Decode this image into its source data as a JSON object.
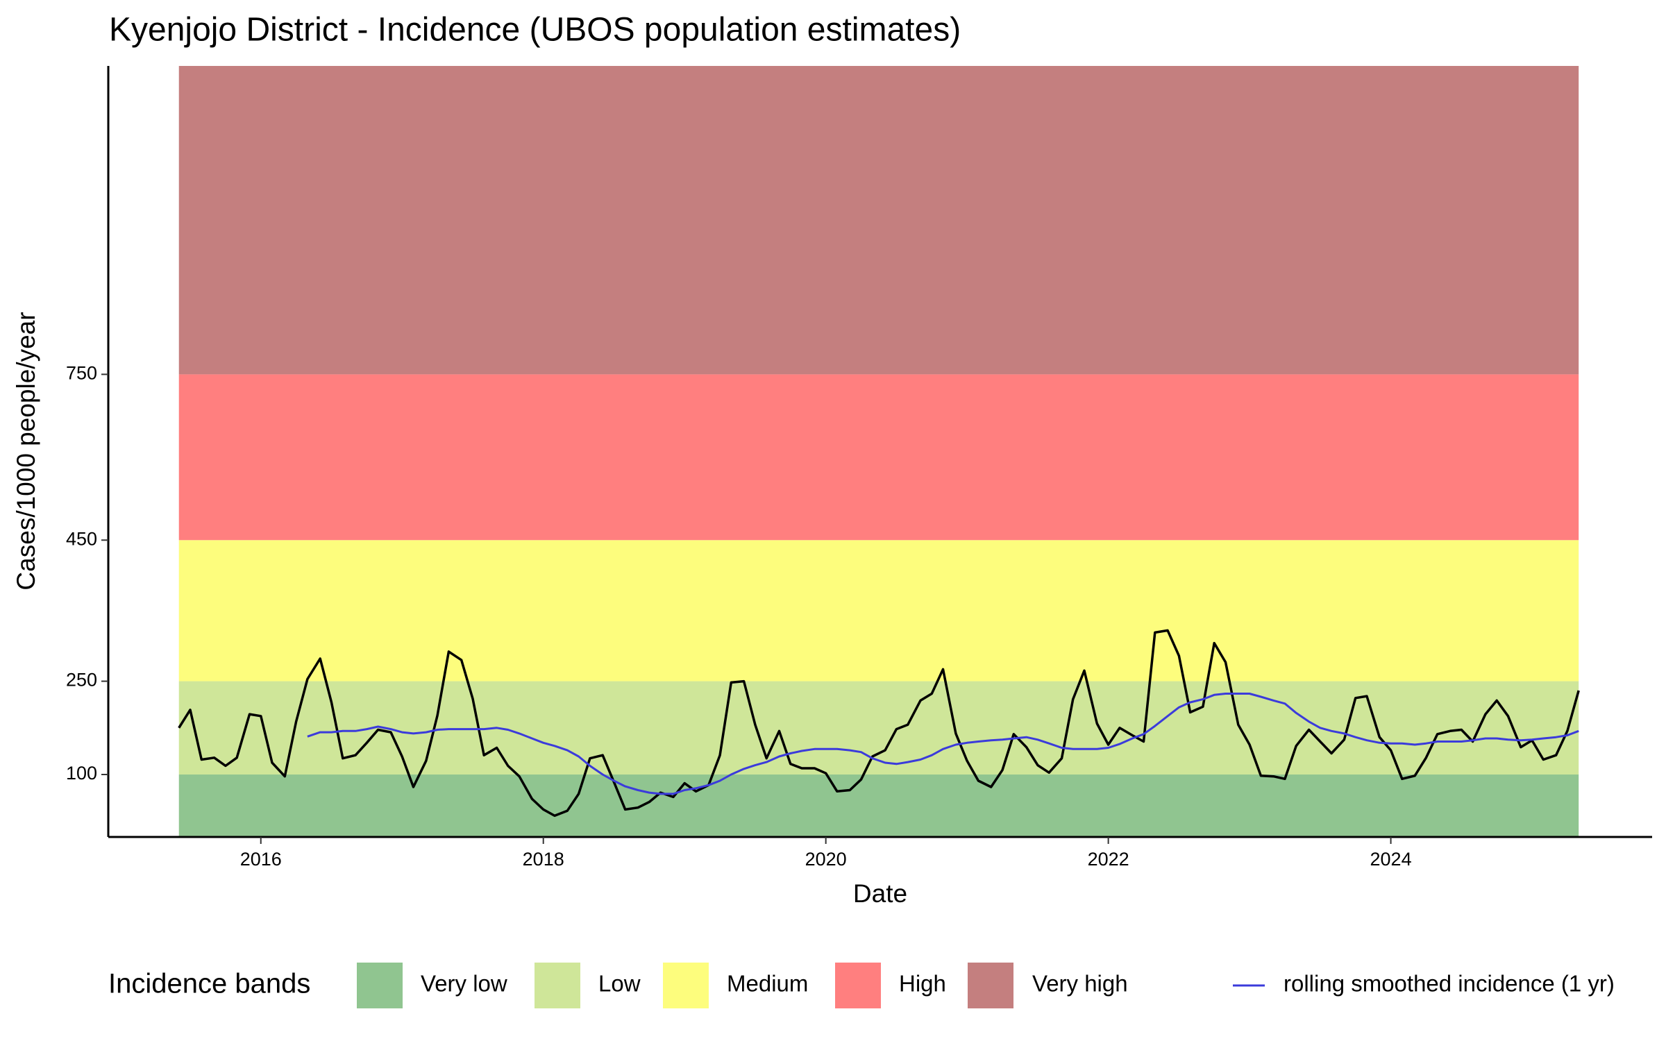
{
  "chart_data": {
    "type": "line",
    "title": "Kyenjojo District - Incidence (UBOS population estimates)",
    "x_label": "Date",
    "y_label": "Cases/1000 people/year",
    "legend_title": "Incidence bands",
    "legend_position": "bottom",
    "xlim": [
      2014.92,
      2025.85
    ],
    "xticks": [
      2016,
      2018,
      2020,
      2022,
      2024
    ],
    "ylim": [
      0,
      1300
    ],
    "yticks": [
      100,
      250,
      450,
      750
    ],
    "bands": [
      {
        "name": "Very low",
        "color": "#90c590",
        "from": 0,
        "to": 100
      },
      {
        "name": "Low",
        "color": "#cfe699",
        "from": 100,
        "to": 250
      },
      {
        "name": "Medium",
        "color": "#fdfd7d",
        "from": 250,
        "to": 450
      },
      {
        "name": "High",
        "color": "#ff7f7f",
        "from": 450,
        "to": 750
      },
      {
        "name": "Very high",
        "color": "#c47f7f",
        "from": 750,
        "to": 1300
      }
    ],
    "x": [
      2015.42,
      2015.5,
      2015.58,
      2015.67,
      2015.75,
      2015.83,
      2015.92,
      2016.0,
      2016.08,
      2016.17,
      2016.25,
      2016.33,
      2016.42,
      2016.5,
      2016.58,
      2016.67,
      2016.75,
      2016.83,
      2016.92,
      2017.0,
      2017.08,
      2017.17,
      2017.25,
      2017.33,
      2017.42,
      2017.5,
      2017.58,
      2017.67,
      2017.75,
      2017.83,
      2017.92,
      2018.0,
      2018.08,
      2018.17,
      2018.25,
      2018.33,
      2018.42,
      2018.5,
      2018.58,
      2018.67,
      2018.75,
      2018.83,
      2018.92,
      2019.0,
      2019.08,
      2019.17,
      2019.25,
      2019.33,
      2019.42,
      2019.5,
      2019.58,
      2019.67,
      2019.75,
      2019.83,
      2019.92,
      2020.0,
      2020.08,
      2020.17,
      2020.25,
      2020.33,
      2020.42,
      2020.5,
      2020.58,
      2020.67,
      2020.75,
      2020.83,
      2020.92,
      2021.0,
      2021.08,
      2021.17,
      2021.25,
      2021.33,
      2021.42,
      2021.5,
      2021.58,
      2021.67,
      2021.75,
      2021.83,
      2021.92,
      2022.0,
      2022.08,
      2022.17,
      2022.25,
      2022.33,
      2022.42,
      2022.5,
      2022.58,
      2022.67,
      2022.75,
      2022.83,
      2022.92,
      2023.0,
      2023.08,
      2023.17,
      2023.25,
      2023.33,
      2023.42,
      2023.5,
      2023.58,
      2023.67,
      2023.75,
      2023.83,
      2023.92,
      2024.0,
      2024.08,
      2024.17,
      2024.25,
      2024.33,
      2024.42,
      2024.5,
      2024.58,
      2024.67,
      2024.75,
      2024.83,
      2024.92,
      2025.0,
      2025.08,
      2025.17,
      2025.25,
      2025.33
    ],
    "series": [
      {
        "color": "#000000",
        "values": [
          175,
          204,
          124,
          127,
          114,
          127,
          197,
          194,
          119,
          97,
          185,
          253,
          282,
          216,
          126,
          131,
          151,
          172,
          168,
          129,
          80,
          122,
          195,
          292,
          280,
          222,
          131,
          143,
          114,
          97,
          61,
          44,
          34,
          42,
          69,
          126,
          131,
          88,
          44,
          47,
          56,
          71,
          64,
          86,
          73,
          83,
          131,
          248,
          250,
          180,
          126,
          170,
          117,
          110,
          110,
          102,
          73,
          75,
          92,
          129,
          139,
          173,
          180,
          219,
          230,
          267,
          166,
          122,
          90,
          80,
          107,
          165,
          144,
          115,
          103,
          126,
          221,
          265,
          182,
          148,
          175,
          163,
          153,
          319,
          322,
          286,
          200,
          209,
          304,
          277,
          180,
          148,
          98,
          97,
          93,
          146,
          172,
          153,
          134,
          156,
          223,
          226,
          160,
          139,
          93,
          98,
          127,
          165,
          170,
          172,
          153,
          197,
          219,
          194,
          144,
          155,
          124,
          131,
          170,
          235
        ]
      },
      {
        "name": "rolling smoothed incidence (1 yr)",
        "color": "#3b3bdb",
        "values": [
          null,
          null,
          null,
          null,
          null,
          null,
          null,
          null,
          null,
          null,
          null,
          161,
          168,
          168,
          170,
          170,
          173,
          177,
          173,
          168,
          166,
          168,
          172,
          173,
          173,
          173,
          173,
          175,
          172,
          166,
          158,
          151,
          146,
          139,
          129,
          114,
          100,
          90,
          81,
          75,
          71,
          69,
          69,
          75,
          78,
          83,
          90,
          100,
          109,
          115,
          120,
          129,
          134,
          138,
          141,
          141,
          141,
          139,
          136,
          126,
          119,
          117,
          120,
          124,
          131,
          141,
          148,
          151,
          153,
          155,
          156,
          158,
          160,
          156,
          150,
          143,
          141,
          141,
          141,
          143,
          149,
          158,
          165,
          178,
          194,
          208,
          216,
          221,
          228,
          230,
          230,
          230,
          225,
          219,
          214,
          199,
          185,
          175,
          170,
          166,
          160,
          155,
          151,
          150,
          150,
          148,
          150,
          153,
          153,
          153,
          155,
          158,
          158,
          156,
          155,
          156,
          158,
          160,
          163,
          170
        ]
      }
    ]
  }
}
